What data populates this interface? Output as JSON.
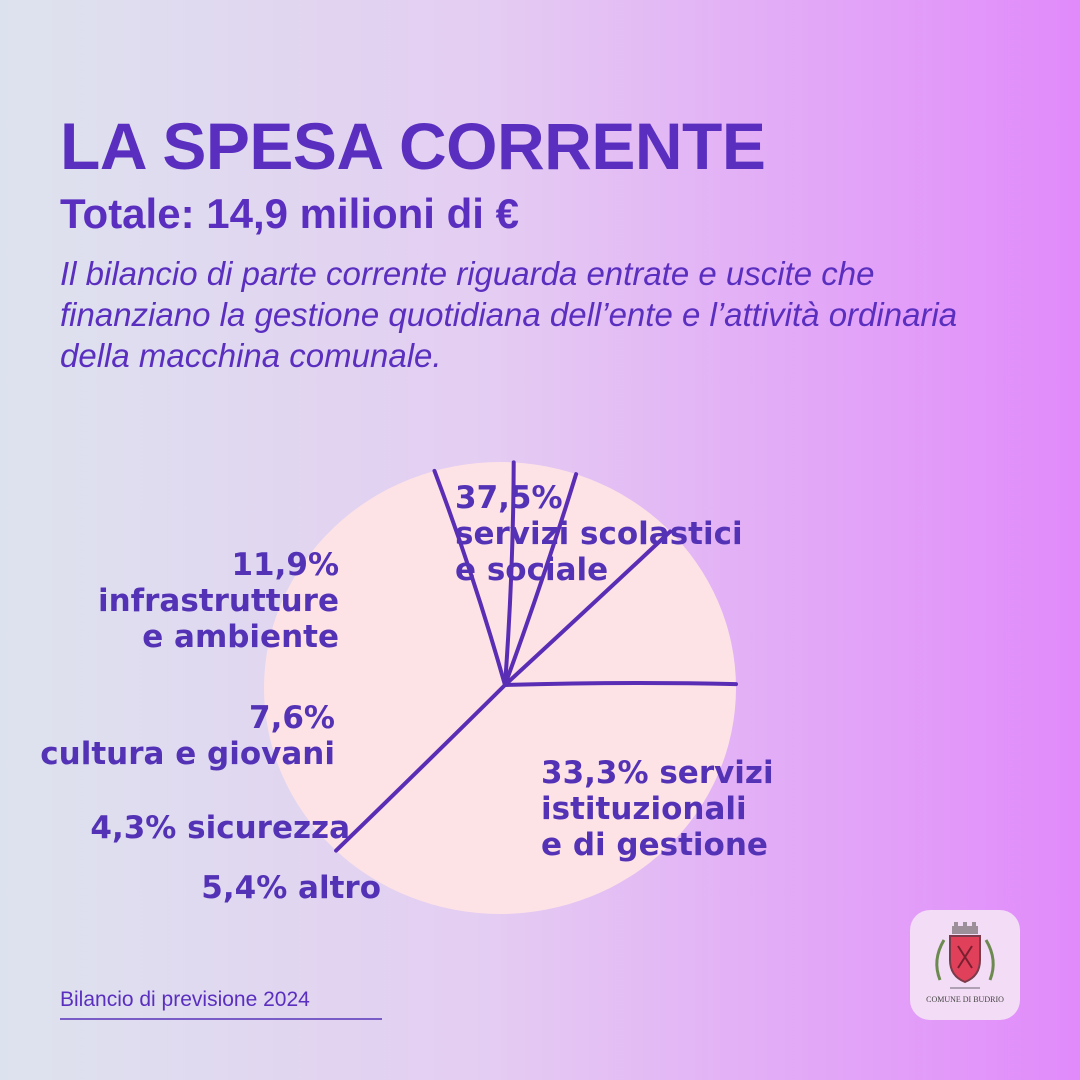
{
  "header": {
    "title": "LA SPESA CORRENTE",
    "subtitle": "Totale: 14,9 milioni di €",
    "intro": "Il bilancio di parte corrente riguarda entrate e uscite che finanziano la gestione quotidiana dell’ente e l’attività ordinaria della macchina comunale."
  },
  "chart_data": {
    "type": "pie",
    "categories": [
      "servizi scolastici e sociale",
      "servizi istituzionali e di gestione",
      "altro",
      "sicurezza",
      "cultura e giovani",
      "infrastrutture e ambiente"
    ],
    "values": [
      37.5,
      33.3,
      5.4,
      4.3,
      7.6,
      11.9
    ],
    "unit": "%",
    "labels": [
      [
        "37,5%",
        "servizi scolastici",
        "e sociale"
      ],
      [
        "33,3% servizi",
        "istituzionali",
        "e di gestione"
      ],
      [
        "5,4% altro"
      ],
      [
        "4,3% sicurezza"
      ],
      [
        "7,6%",
        "cultura e giovani"
      ],
      [
        "11,9%",
        "infrastrutture",
        "e ambiente"
      ]
    ],
    "colors": {
      "slice": "#fde3e6",
      "divider": "#5a2db5",
      "label": "#5332b5"
    }
  },
  "footer": {
    "label": "Bilancio di previsione 2024"
  },
  "logo": {
    "text": "COMUNE DI BUDRIO"
  }
}
